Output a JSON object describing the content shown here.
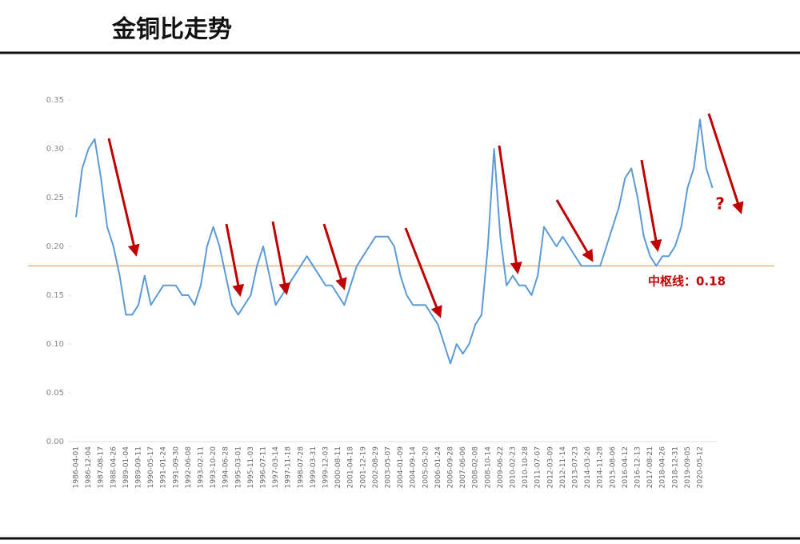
{
  "chart_data": {
    "type": "line",
    "title": "金铜比走势",
    "categories": [
      "1986-04-01",
      null,
      "1986-12-04",
      null,
      "1987-08-17",
      null,
      "1988-04-26",
      null,
      "1989-01-04",
      null,
      "1989-09-11",
      null,
      "1990-05-17",
      null,
      "1991-01-24",
      null,
      "1991-09-30",
      null,
      "1992-06-08",
      null,
      "1993-02-11",
      null,
      "1993-10-20",
      null,
      "1994-06-28",
      null,
      "1995-03-01",
      null,
      "1995-11-03",
      null,
      "1996-07-11",
      null,
      "1997-03-14",
      null,
      "1997-11-18",
      null,
      "1998-07-28",
      null,
      "1999-03-31",
      null,
      "1999-12-03",
      null,
      "2000-08-11",
      null,
      "2001-04-18",
      null,
      "2001-12-19",
      null,
      "2002-08-29",
      null,
      "2003-05-07",
      null,
      "2004-01-09",
      null,
      "2004-09-14",
      null,
      "2005-05-20",
      null,
      "2006-01-24",
      null,
      "2006-09-28",
      null,
      "2007-06-06",
      null,
      "2008-02-08",
      null,
      "2008-10-14",
      null,
      "2009-06-22",
      null,
      "2010-02-23",
      null,
      "2010-10-28",
      null,
      "2011-07-07",
      null,
      "2012-03-09",
      null,
      "2012-11-14",
      null,
      "2013-07-23",
      null,
      "2014-03-26",
      null,
      "2014-11-28",
      null,
      "2015-08-06",
      null,
      "2016-04-12",
      null,
      "2016-12-13",
      null,
      "2017-08-21",
      null,
      "2018-04-26",
      null,
      "2018-12-31",
      null,
      "2019-09-05",
      null,
      "2020-05-12",
      null,
      null
    ],
    "values": [
      0.23,
      0.28,
      0.3,
      0.31,
      0.27,
      0.22,
      0.2,
      0.17,
      0.13,
      0.13,
      0.14,
      0.17,
      0.14,
      0.15,
      0.16,
      0.16,
      0.16,
      0.15,
      0.15,
      0.14,
      0.16,
      0.2,
      0.22,
      0.2,
      0.17,
      0.14,
      0.13,
      0.14,
      0.15,
      0.18,
      0.2,
      0.17,
      0.14,
      0.15,
      0.16,
      0.17,
      0.18,
      0.19,
      0.18,
      0.17,
      0.16,
      0.16,
      0.15,
      0.14,
      0.16,
      0.18,
      0.19,
      0.2,
      0.21,
      0.21,
      0.21,
      0.2,
      0.17,
      0.15,
      0.14,
      0.14,
      0.14,
      0.13,
      0.12,
      0.1,
      0.08,
      0.1,
      0.09,
      0.1,
      0.12,
      0.13,
      0.2,
      0.3,
      0.21,
      0.16,
      0.17,
      0.16,
      0.16,
      0.15,
      0.17,
      0.22,
      0.21,
      0.2,
      0.21,
      0.2,
      0.19,
      0.18,
      0.18,
      0.18,
      0.18,
      0.2,
      0.22,
      0.24,
      0.27,
      0.28,
      0.25,
      0.21,
      0.19,
      0.18,
      0.19,
      0.19,
      0.2,
      0.22,
      0.26,
      0.28,
      0.33,
      0.28,
      0.26
    ],
    "color": "#5b9bd5",
    "ylim": [
      0,
      0.35
    ],
    "yticks": [
      {
        "value": 0,
        "label": "0.00"
      },
      0.05,
      {
        "value": 0.1,
        "label": "0.10"
      },
      0.15,
      {
        "value": 0.2,
        "label": "0.20"
      },
      0.25,
      {
        "value": 0.3,
        "label": "0.30"
      },
      0.35
    ],
    "grid": false,
    "reference_line": {
      "value": 0.18,
      "label": "中枢线：0.18",
      "color": "#f0b080",
      "label_color": "#c00000"
    },
    "annotation": "?"
  }
}
